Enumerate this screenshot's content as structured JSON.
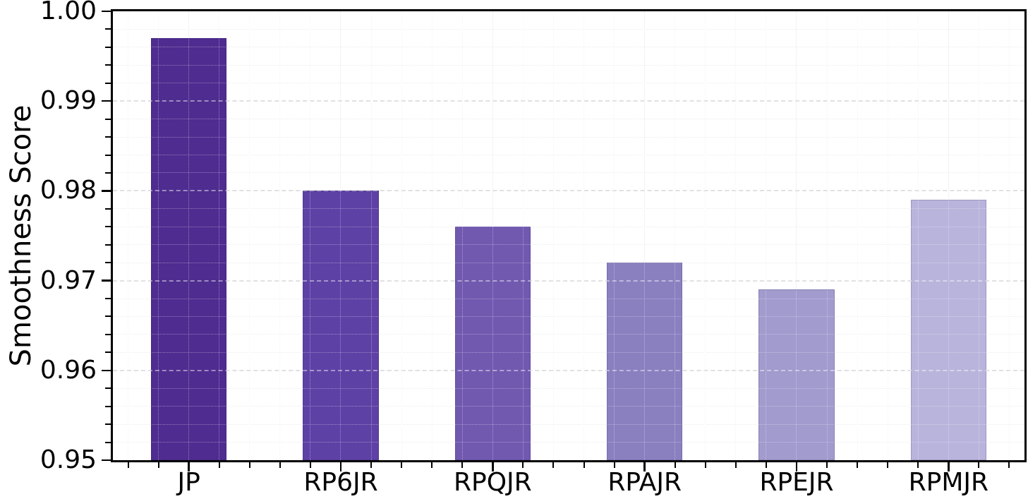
{
  "chart_data": {
    "type": "bar",
    "title": "",
    "categories": [
      "JP",
      "RP6JR",
      "RPQJR",
      "RPAJR",
      "RPEJR",
      "RPMJR"
    ],
    "values": [
      0.997,
      0.98,
      0.976,
      0.972,
      0.969,
      0.979
    ],
    "bar_colors": [
      "#4f2c90",
      "#5e41a5",
      "#7159b0",
      "#8a80c0",
      "#a19bce",
      "#b9b4dc"
    ],
    "xlabel": "",
    "ylabel": "Smoothness Score",
    "ylim": [
      0.95,
      1.0
    ],
    "y_ticks": [
      0.95,
      0.96,
      0.97,
      0.98,
      0.99,
      1.0
    ],
    "y_tick_labels": [
      "0.95",
      "0.96",
      "0.97",
      "0.98",
      "0.99",
      "1.00"
    ],
    "y_minor_step": 0.002,
    "x_minor_divisions_per_slot": 5,
    "bar_width_fraction": 0.5,
    "grid": {
      "major_horizontal_style": "dashed",
      "minor_horizontal_style": "dotted",
      "vertical_style": "dotted",
      "major_color": "#c9c9c9",
      "minor_color": "#e3e3e3",
      "vertical_major_color": "#dadada",
      "vertical_minor_color": "#efefef",
      "overlay_major_color": "rgba(255,255,255,0.45)",
      "overlay_minor_color": "rgba(255,255,255,0.38)"
    },
    "legend": null,
    "spine_color": "#000000",
    "tick_color": "#000000",
    "background": "#ffffff"
  }
}
